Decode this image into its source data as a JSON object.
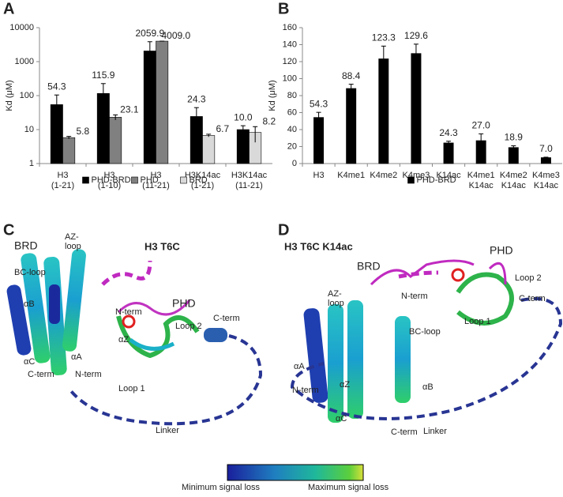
{
  "panel_labels": [
    "A",
    "B",
    "C",
    "D"
  ],
  "chart_data": [
    {
      "type": "bar",
      "log_y": true,
      "ylabel": "Kd (μM)",
      "categories": [
        [
          "H3",
          "(1-21)"
        ],
        [
          "H3",
          "(1-10)"
        ],
        [
          "H3",
          "(11-21)"
        ],
        [
          "H3K14ac",
          "(1-21)"
        ],
        [
          "H3K14ac",
          "(11-21)"
        ]
      ],
      "series": [
        {
          "name": "PHD-BRD",
          "color": "#000000",
          "values": [
            54.3,
            115.9,
            2059.9,
            24.3,
            10.0
          ],
          "value_labels": [
            null,
            null,
            null,
            null,
            "10.0"
          ],
          "errors": [
            50,
            110,
            1800,
            20,
            3
          ]
        },
        {
          "name": "PHD",
          "color": "#808080",
          "values": [
            5.8,
            23.1,
            4009.0,
            null,
            null
          ],
          "value_labels": [
            null,
            null,
            "4009.0",
            null,
            null
          ],
          "errors": [
            0.5,
            4,
            0,
            null,
            null
          ]
        },
        {
          "name": "BRD",
          "color": "#d9d9d9",
          "values": [
            null,
            null,
            null,
            6.7,
            8.2
          ],
          "errors": [
            null,
            null,
            null,
            0.6,
            4
          ]
        }
      ],
      "ylim": [
        1,
        10000
      ],
      "yticks": [
        1,
        10,
        100,
        1000,
        10000
      ]
    },
    {
      "type": "bar",
      "log_y": false,
      "ylabel": "Kd (μM)",
      "categories": [
        [
          "H3"
        ],
        [
          "K4me1"
        ],
        [
          "K4me2"
        ],
        [
          "K4me3"
        ],
        [
          "K14ac"
        ],
        [
          "K4me1",
          "K14ac"
        ],
        [
          "K4me2",
          "K14ac"
        ],
        [
          "K4me3",
          "K14ac"
        ]
      ],
      "series": [
        {
          "name": "PHD-BRD",
          "color": "#000000",
          "values": [
            54.3,
            88.4,
            123.3,
            129.6,
            24.3,
            27.0,
            18.9,
            7.0
          ],
          "value_labels": [
            "54.3",
            "88.4",
            "123.3",
            "129.6",
            "24.3",
            "27.0",
            "18.9",
            "7.0"
          ],
          "errors": [
            6,
            5,
            15,
            11,
            2,
            8,
            2,
            0.5
          ]
        }
      ],
      "ylim": [
        0,
        160
      ],
      "yticks": [
        0,
        20,
        40,
        60,
        80,
        100,
        120,
        140,
        160
      ]
    }
  ],
  "structures": [
    {
      "title": "H3 T6C",
      "labels": [
        "BRD",
        [
          "AZ-",
          "loop"
        ],
        "BC-loop",
        "αB",
        "αC",
        "C-term",
        "αA",
        "N-term",
        "αZ",
        "N-term",
        "PHD",
        "Loop 2",
        "C-term",
        "Loop 1",
        "Linker"
      ]
    },
    {
      "title": "H3 T6C K14ac",
      "labels": [
        "BRD",
        [
          "AZ-",
          "loop"
        ],
        "N-term",
        "PHD",
        "Loop 2",
        "C-term",
        "BC-loop",
        "Loop 1",
        "αA",
        "N-term",
        "αZ",
        "αB",
        "αC",
        "C-term",
        "Linker"
      ]
    }
  ],
  "colorbar": {
    "min_label": "Minimum signal loss",
    "max_label": "Maximum signal loss"
  }
}
